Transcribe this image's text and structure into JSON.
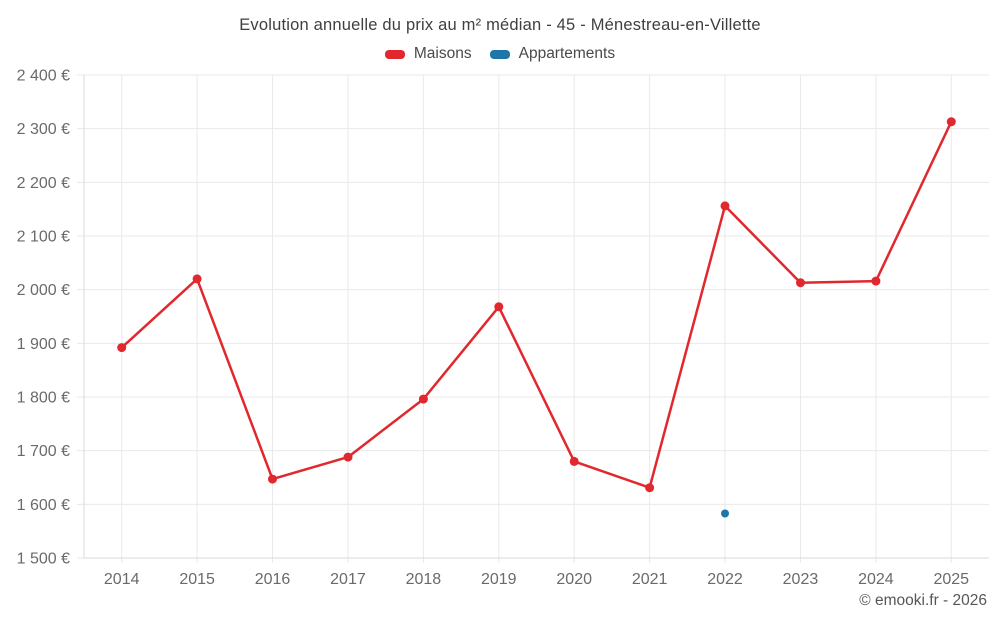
{
  "header": {
    "title": "Evolution annuelle du prix au m² médian - 45 - Ménestreau-en-Villette"
  },
  "legend": [
    {
      "label": "Maisons",
      "color": "#e0282e"
    },
    {
      "label": "Appartements",
      "color": "#1c76a8"
    }
  ],
  "footer": {
    "copyright": "© emooki.fr - 2026"
  },
  "colors": {
    "maisons": "#e0282e",
    "appartements": "#1c76a8",
    "grid": "#e9e9e9",
    "axis": "#d8d8d8",
    "tick_text": "#6a6a6a",
    "title_text": "#3f3f3f",
    "footer_text": "#565656",
    "background": "#ffffff"
  },
  "chart_data": {
    "type": "line",
    "title": "Evolution annuelle du prix au m² médian - 45 - Ménestreau-en-Villette",
    "xlabel": "",
    "ylabel": "",
    "x": [
      "2014",
      "2015",
      "2016",
      "2017",
      "2018",
      "2019",
      "2020",
      "2021",
      "2022",
      "2023",
      "2024",
      "2025"
    ],
    "series": [
      {
        "name": "Maisons",
        "color": "#e0282e",
        "values": [
          1892,
          2020,
          1647,
          1688,
          1796,
          1968,
          1680,
          1631,
          2156,
          2013,
          2016,
          2313
        ]
      },
      {
        "name": "Appartements",
        "color": "#1c76a8",
        "values": [
          null,
          null,
          null,
          null,
          null,
          null,
          null,
          null,
          1583,
          null,
          null,
          null
        ]
      }
    ],
    "ylim": [
      1500,
      2400
    ],
    "y_ticks": [
      {
        "value": 2400,
        "label": "2 400 €"
      },
      {
        "value": 2300,
        "label": "2 300 €"
      },
      {
        "value": 2200,
        "label": "2 200 €"
      },
      {
        "value": 2100,
        "label": "2 100 €"
      },
      {
        "value": 2000,
        "label": "2 000 €"
      },
      {
        "value": 1900,
        "label": "1 900 €"
      },
      {
        "value": 1800,
        "label": "1 800 €"
      },
      {
        "value": 1700,
        "label": "1 700 €"
      },
      {
        "value": 1600,
        "label": "1 600 €"
      },
      {
        "value": 1500,
        "label": "1 500 €"
      }
    ],
    "grid": true,
    "legend_position": "top"
  }
}
